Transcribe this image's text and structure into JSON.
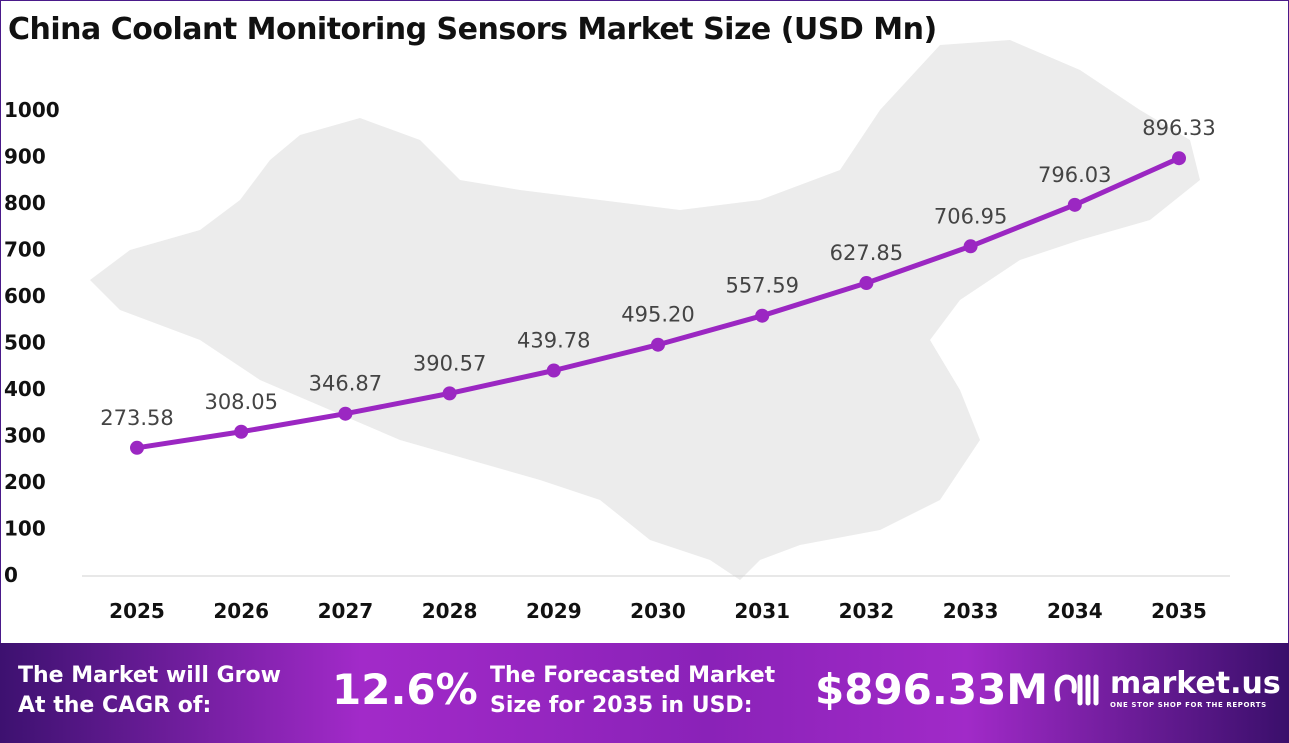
{
  "chart_data": {
    "type": "line",
    "title": "China Coolant Monitoring Sensors Market Size (USD Mn)",
    "categories": [
      "2025",
      "2026",
      "2027",
      "2028",
      "2029",
      "2030",
      "2031",
      "2032",
      "2033",
      "2034",
      "2035"
    ],
    "values": [
      273.58,
      308.05,
      346.87,
      390.57,
      439.78,
      495.2,
      557.59,
      627.85,
      706.95,
      796.03,
      896.33
    ],
    "data_labels": [
      "273.58",
      "308.05",
      "346.87",
      "390.57",
      "439.78",
      "495.20",
      "557.59",
      "627.85",
      "706.95",
      "796.03",
      "896.33"
    ],
    "yticks": [
      0,
      100,
      200,
      300,
      400,
      500,
      600,
      700,
      800,
      900,
      1000
    ],
    "ylim": [
      0,
      1000
    ],
    "xlabel": "",
    "ylabel": "",
    "grid": false,
    "line_color": "#9b27c2"
  },
  "footer": {
    "cagr_label_line1": "The Market will Grow",
    "cagr_label_line2": "At the CAGR of:",
    "cagr_value": "12.6%",
    "forecast_label_line1": "The Forecasted Market",
    "forecast_label_line2": "Size for 2035 in USD:",
    "forecast_value": "$896.33M",
    "logo_name": "market.us",
    "logo_tagline": "ONE STOP SHOP FOR THE REPORTS"
  }
}
